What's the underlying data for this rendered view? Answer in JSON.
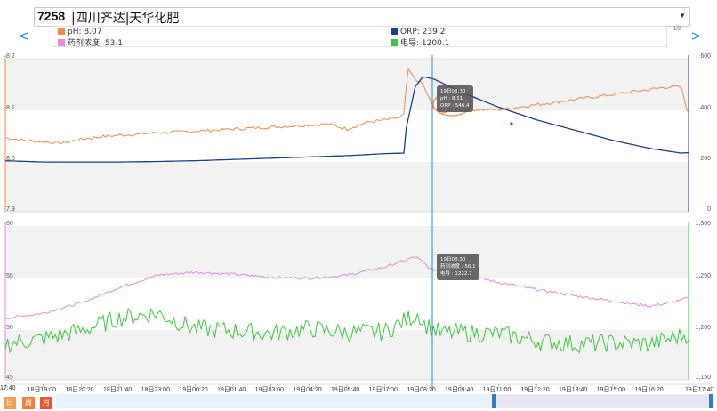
{
  "header": {
    "station_code": "7258",
    "station_name": "|四川齐达|天华化肥",
    "prev_label": "<",
    "next_label": ">",
    "page_indicator": "1/2"
  },
  "legend": [
    {
      "name": "pH",
      "value": "8.07",
      "color": "#f28a4b"
    },
    {
      "name": "ORP",
      "value": "239.2",
      "color": "#1b3f8b"
    },
    {
      "name": "药剂浓度",
      "value": "53.1",
      "color": "#e08ce0"
    },
    {
      "name": "电导",
      "value": "1200.1",
      "color": "#3cc83c"
    }
  ],
  "colors": {
    "ph": "#f28a4b",
    "orp": "#1b3f8b",
    "dosing": "#e08ce0",
    "conductivity": "#3cc83c",
    "crosshair": "#1e90c8"
  },
  "chart_data": [
    {
      "type": "line",
      "title": "",
      "x_ticks": [
        "17:40",
        "18日19:00",
        "18日20:20",
        "18日21:40",
        "18日23:00",
        "19日00:20",
        "19日01:40",
        "19日03:00",
        "19日04:20",
        "19日05:40",
        "19日07:00",
        "19日08:20",
        "19日09:40",
        "19日11:00",
        "19日12:20",
        "19日13:40",
        "19日15:00",
        "19日16:20",
        "19日17:40"
      ],
      "y_left": {
        "ticks": [
          "8.2",
          "8.1",
          "8.0",
          "7.9"
        ],
        "range": [
          7.9,
          8.2
        ]
      },
      "y_right": {
        "ticks": [
          "600",
          "400",
          "200",
          "0"
        ],
        "range": [
          0,
          600
        ]
      },
      "series": [
        {
          "name": "pH",
          "axis": "left",
          "x": [
            0,
            0.5,
            1,
            1.5,
            2,
            2.5,
            3,
            3.5,
            4,
            4.5,
            5,
            5.5,
            6,
            6.5,
            7,
            7.5,
            8,
            8.5,
            9,
            9.5,
            10,
            10.4,
            10.5,
            10.6,
            10.8,
            11,
            11.3,
            11.6,
            12,
            12.5,
            13,
            13.5,
            14,
            14.5,
            15,
            15.5,
            16,
            16.5,
            17,
            17.5,
            17.8,
            18
          ],
          "y": [
            8.045,
            8.04,
            8.037,
            8.035,
            8.042,
            8.047,
            8.05,
            8.052,
            8.055,
            8.056,
            8.058,
            8.06,
            8.062,
            8.064,
            8.066,
            8.068,
            8.07,
            8.072,
            8.062,
            8.075,
            8.08,
            8.085,
            8.09,
            8.18,
            8.16,
            8.15,
            8.1,
            8.095,
            8.1,
            8.1,
            8.1,
            8.105,
            8.11,
            8.115,
            8.12,
            8.125,
            8.13,
            8.135,
            8.14,
            8.145,
            8.145,
            8.09
          ]
        },
        {
          "name": "ORP",
          "axis": "right",
          "x": [
            0,
            1,
            2,
            3,
            4,
            5,
            6,
            7,
            8,
            9,
            10,
            10.5,
            10.55,
            10.8,
            11,
            11.3,
            12,
            13,
            14,
            15,
            16,
            17,
            17.8,
            18
          ],
          "y": [
            200,
            195,
            195,
            195,
            197,
            200,
            205,
            210,
            215,
            220,
            228,
            230,
            320,
            490,
            530,
            520,
            470,
            410,
            360,
            320,
            280,
            248,
            230,
            232
          ]
        },
        {
          "name": "药剂浓度",
          "axis": "left",
          "x": [
            0,
            1,
            2,
            3,
            4,
            5,
            6,
            7,
            8,
            9,
            10,
            10.8,
            11,
            11.2,
            12,
            13,
            14,
            15,
            16,
            16.5,
            17,
            17.5,
            18
          ],
          "y": [
            51,
            51.5,
            52.5,
            54,
            55.2,
            55.5,
            55.3,
            55,
            54.9,
            55.2,
            56,
            57,
            56.5,
            55.8,
            55.3,
            54.5,
            53.8,
            53.2,
            52.7,
            52.4,
            52.2,
            52.5,
            53
          ]
        },
        {
          "name": "电导",
          "axis": "right",
          "x": [
            0,
            1,
            2,
            3,
            4,
            5,
            6,
            7,
            8,
            9,
            10,
            10.9,
            11,
            11.5,
            12,
            13,
            14,
            15,
            16,
            17,
            18
          ],
          "y": [
            1185,
            1190,
            1198,
            1210,
            1215,
            1200,
            1198,
            1195,
            1200,
            1196,
            1197,
            1215,
            1205,
            1195,
            1196,
            1195,
            1188,
            1185,
            1186,
            1185,
            1195
          ]
        }
      ]
    },
    {
      "type": "line",
      "title": "",
      "y_left": {
        "ticks": [
          "60",
          "55",
          "50",
          "45"
        ],
        "range": [
          45,
          60
        ]
      },
      "y_right": {
        "ticks": [
          "1,300",
          "1,250",
          "1,200",
          "1,150"
        ],
        "range": [
          1150,
          1300
        ]
      }
    }
  ],
  "tooltips": {
    "top": {
      "time": "19日08:30",
      "line1": "pH : 8.11",
      "line2": "ORP : 546.4"
    },
    "bottom": {
      "time": "19日08:30",
      "line1": "药剂浓度 : 56.1",
      "line2": "电导 : 1222.7"
    }
  },
  "period_buttons": [
    {
      "label": "日",
      "color": "#f0a050"
    },
    {
      "label": "周",
      "color": "#f08040"
    },
    {
      "label": "月",
      "color": "#e8553a"
    }
  ]
}
